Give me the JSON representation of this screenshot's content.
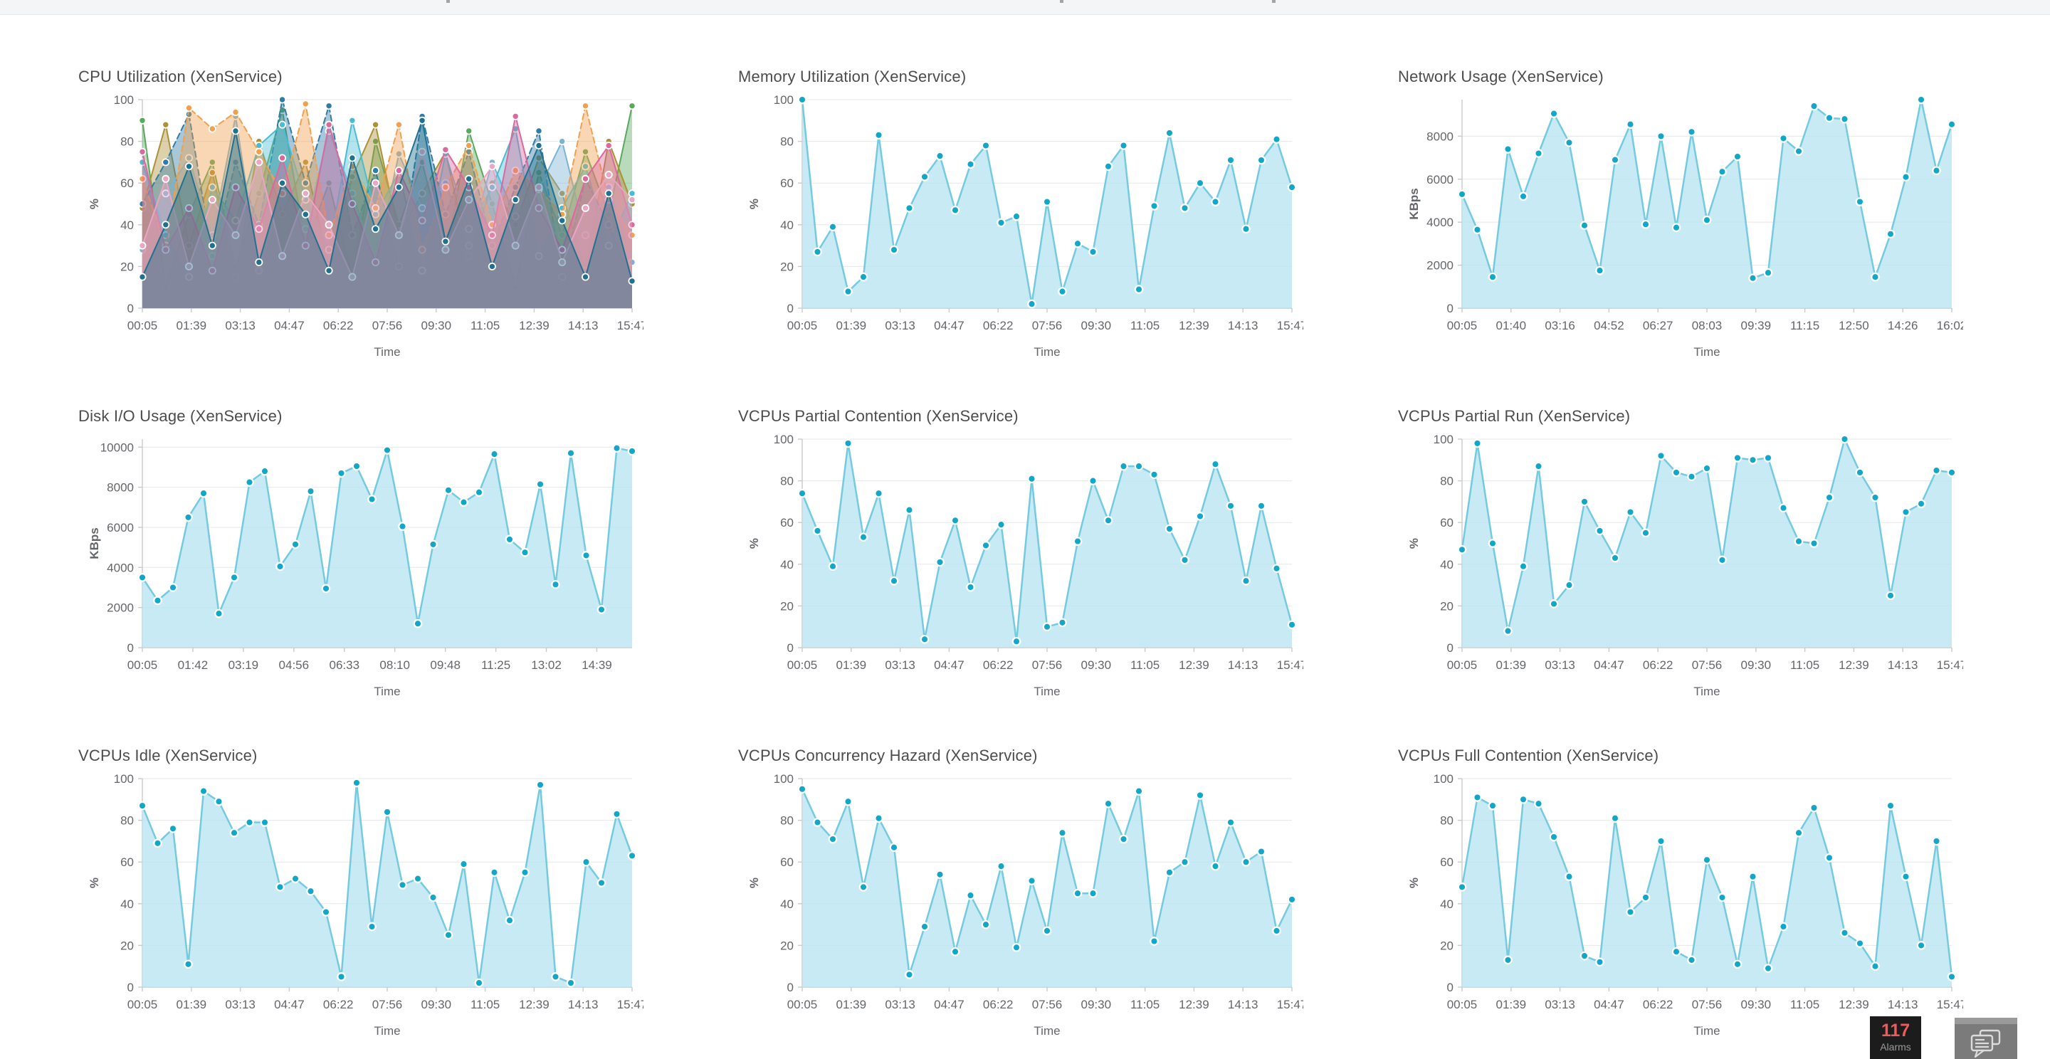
{
  "top_bar": {
    "background": "#f4f5f7"
  },
  "alarms_badge": {
    "count": "117",
    "label": "Alarms",
    "bg": "#1c1c1c",
    "count_color": "#ef5a5a",
    "label_color": "#9b9b9b"
  },
  "chat_button": {
    "icon": "chat-bubbles-icon",
    "bg": "#7b7b7b"
  },
  "chart_style": {
    "grid": "#e6e7e8",
    "axis": "#c8cacc",
    "text": "#64666a",
    "title": "#4c4c4e",
    "single": {
      "line": "#74cbe0",
      "fill": "#b9e5f2",
      "fill_opacity": 0.8,
      "marker": "#12a7c9",
      "marker_stroke": "#ffffff",
      "line_width": 2.5,
      "marker_r": 5.2
    },
    "multi": {
      "fill_opacity": 0.42,
      "line_width": 2,
      "marker_r": 4.6,
      "marker_stroke": "#ffffff"
    }
  },
  "chart_data": [
    {
      "type": "area",
      "title": "CPU Utilization (XenService)",
      "xlabel": "Time",
      "ylabel": "%",
      "ymax": 100,
      "yticks": [
        0,
        20,
        40,
        60,
        80,
        100
      ],
      "tick_end": 1.0,
      "xticks": [
        "00:05",
        "01:39",
        "03:13",
        "04:47",
        "06:22",
        "07:56",
        "09:30",
        "11:05",
        "12:39",
        "14:13",
        "15:47"
      ],
      "series": [
        {
          "color": "#59a85c",
          "values": [
            90,
            10,
            45,
            70,
            20,
            55,
            95,
            30,
            60,
            15,
            80,
            40,
            70,
            25,
            85,
            50,
            10,
            65,
            35,
            75,
            45,
            97
          ]
        },
        {
          "color": "#ab9137",
          "values": [
            48,
            88,
            30,
            65,
            15,
            80,
            45,
            70,
            20,
            63,
            88,
            35,
            55,
            75,
            25,
            60,
            40,
            72,
            55,
            18,
            80,
            50
          ]
        },
        {
          "color": "#2f7ca8",
          "dash": "8,5",
          "values": [
            50,
            70,
            93,
            25,
            70,
            40,
            100,
            60,
            97,
            35,
            66,
            20,
            92,
            45,
            75,
            30,
            58,
            85,
            15,
            62,
            40,
            13
          ]
        },
        {
          "color": "#7ab3d4",
          "values": [
            28,
            55,
            72,
            35,
            92,
            18,
            55,
            38,
            85,
            55,
            22,
            74,
            48,
            60,
            30,
            70,
            44,
            57,
            80,
            35,
            58,
            22
          ]
        },
        {
          "color": "#49bcd4",
          "values": [
            70,
            35,
            15,
            58,
            42,
            78,
            88,
            52,
            28,
            90,
            45,
            65,
            18,
            74,
            38,
            58,
            86,
            25,
            48,
            68,
            30,
            55
          ]
        },
        {
          "color": "#f0a04e",
          "dash": "8,5",
          "values": [
            62,
            30,
            96,
            86,
            94,
            75,
            55,
            98,
            35,
            68,
            48,
            88,
            28,
            58,
            78,
            40,
            66,
            57,
            45,
            97,
            52,
            35
          ]
        },
        {
          "color": "#d9699e",
          "values": [
            75,
            28,
            48,
            18,
            58,
            38,
            72,
            30,
            88,
            50,
            22,
            66,
            42,
            76,
            58,
            35,
            92,
            48,
            28,
            62,
            78,
            40
          ]
        },
        {
          "color": "#e8a7c3",
          "values": [
            30,
            62,
            20,
            52,
            35,
            70,
            25,
            55,
            40,
            15,
            60,
            35,
            75,
            28,
            52,
            68,
            30,
            58,
            22,
            48,
            64,
            52
          ]
        },
        {
          "color": "#20718f",
          "values": [
            15,
            40,
            68,
            30,
            85,
            22,
            60,
            45,
            18,
            72,
            38,
            58,
            90,
            32,
            62,
            20,
            52,
            78,
            42,
            15,
            55,
            13
          ]
        }
      ]
    },
    {
      "type": "area",
      "title": "Memory Utilization (XenService)",
      "xlabel": "Time",
      "ylabel": "%",
      "ymax": 100,
      "yticks": [
        0,
        20,
        40,
        60,
        80,
        100
      ],
      "tick_end": 1.0,
      "xticks": [
        "00:05",
        "01:39",
        "03:13",
        "04:47",
        "06:22",
        "07:56",
        "09:30",
        "11:05",
        "12:39",
        "14:13",
        "15:47"
      ],
      "values": [
        100,
        27,
        39,
        8,
        15,
        83,
        28,
        48,
        63,
        73,
        47,
        69,
        78,
        41,
        44,
        2,
        51,
        8,
        31,
        27,
        68,
        78,
        9,
        49,
        84,
        48,
        60,
        51,
        71,
        38,
        71,
        81,
        58
      ]
    },
    {
      "type": "area",
      "title": "Network Usage (XenService)",
      "xlabel": "Time",
      "ylabel": "KBps",
      "ymax": 9700,
      "yticks": [
        0,
        2000,
        4000,
        6000,
        8000
      ],
      "tick_end": 1.0,
      "xticks": [
        "00:05",
        "01:40",
        "03:16",
        "04:52",
        "06:27",
        "08:03",
        "09:39",
        "11:15",
        "12:50",
        "14:26",
        "16:02"
      ],
      "values": [
        5300,
        3650,
        1450,
        7400,
        5200,
        7200,
        9050,
        7700,
        3850,
        1750,
        6900,
        8550,
        3900,
        8000,
        3750,
        8200,
        4100,
        6350,
        7050,
        1400,
        1650,
        7900,
        7300,
        9400,
        8850,
        8800,
        4950,
        1450,
        3450,
        6100,
        9700,
        6400,
        8550
      ]
    },
    {
      "type": "area",
      "title": "Disk I/O Usage (XenService)",
      "xlabel": "Time",
      "ylabel": "KBps",
      "ymax": 10400,
      "yticks": [
        0,
        2000,
        4000,
        6000,
        8000,
        10000
      ],
      "tick_end": 0.928,
      "xticks": [
        "00:05",
        "01:42",
        "03:19",
        "04:56",
        "06:33",
        "08:10",
        "09:48",
        "11:25",
        "13:02",
        "14:39"
      ],
      "values": [
        3500,
        2350,
        3000,
        6500,
        7700,
        1700,
        3500,
        8250,
        8800,
        4050,
        5150,
        7800,
        2950,
        8700,
        9050,
        7400,
        9850,
        6050,
        1200,
        5150,
        7850,
        7250,
        7750,
        9650,
        5400,
        4750,
        8150,
        3150,
        9700,
        4600,
        1900,
        9950,
        9800
      ]
    },
    {
      "type": "area",
      "title": "VCPUs Partial Contention (XenService)",
      "xlabel": "Time",
      "ylabel": "%",
      "ymax": 100,
      "yticks": [
        0,
        20,
        40,
        60,
        80,
        100
      ],
      "tick_end": 1.0,
      "xticks": [
        "00:05",
        "01:39",
        "03:13",
        "04:47",
        "06:22",
        "07:56",
        "09:30",
        "11:05",
        "12:39",
        "14:13",
        "15:47"
      ],
      "values": [
        74,
        56,
        39,
        98,
        53,
        74,
        32,
        66,
        4,
        41,
        61,
        29,
        49,
        59,
        3,
        81,
        10,
        12,
        51,
        80,
        61,
        87,
        87,
        83,
        57,
        42,
        63,
        88,
        68,
        32,
        68,
        38,
        11
      ]
    },
    {
      "type": "area",
      "title": "VCPUs Partial Run (XenService)",
      "xlabel": "Time",
      "ylabel": "%",
      "ymax": 100,
      "yticks": [
        0,
        20,
        40,
        60,
        80,
        100
      ],
      "tick_end": 1.0,
      "xticks": [
        "00:05",
        "01:39",
        "03:13",
        "04:47",
        "06:22",
        "07:56",
        "09:30",
        "11:05",
        "12:39",
        "14:13",
        "15:47"
      ],
      "values": [
        47,
        98,
        50,
        8,
        39,
        87,
        21,
        30,
        70,
        56,
        43,
        65,
        55,
        92,
        84,
        82,
        86,
        42,
        91,
        90,
        91,
        67,
        51,
        50,
        72,
        100,
        84,
        72,
        25,
        65,
        69,
        85,
        84
      ]
    },
    {
      "type": "area",
      "title": "VCPUs Idle (XenService)",
      "xlabel": "Time",
      "ylabel": "%",
      "ymax": 100,
      "yticks": [
        0,
        20,
        40,
        60,
        80,
        100
      ],
      "tick_end": 1.0,
      "xticks": [
        "00:05",
        "01:39",
        "03:13",
        "04:47",
        "06:22",
        "07:56",
        "09:30",
        "11:05",
        "12:39",
        "14:13",
        "15:47"
      ],
      "values": [
        87,
        69,
        76,
        11,
        94,
        89,
        74,
        79,
        79,
        48,
        52,
        46,
        36,
        5,
        98,
        29,
        84,
        49,
        52,
        43,
        25,
        59,
        2,
        55,
        32,
        55,
        97,
        5,
        2,
        60,
        50,
        83,
        63
      ]
    },
    {
      "type": "area",
      "title": "VCPUs Concurrency Hazard (XenService)",
      "xlabel": "Time",
      "ylabel": "%",
      "ymax": 100,
      "yticks": [
        0,
        20,
        40,
        60,
        80,
        100
      ],
      "tick_end": 1.0,
      "xticks": [
        "00:05",
        "01:39",
        "03:13",
        "04:47",
        "06:22",
        "07:56",
        "09:30",
        "11:05",
        "12:39",
        "14:13",
        "15:47"
      ],
      "values": [
        95,
        79,
        71,
        89,
        48,
        81,
        67,
        6,
        29,
        54,
        17,
        44,
        30,
        58,
        19,
        51,
        27,
        74,
        45,
        45,
        88,
        71,
        94,
        22,
        55,
        60,
        92,
        58,
        79,
        60,
        65,
        27,
        42
      ]
    },
    {
      "type": "area",
      "title": "VCPUs Full Contention (XenService)",
      "xlabel": "Time",
      "ylabel": "%",
      "ymax": 100,
      "yticks": [
        0,
        20,
        40,
        60,
        80,
        100
      ],
      "tick_end": 1.0,
      "xticks": [
        "00:05",
        "01:39",
        "03:13",
        "04:47",
        "06:22",
        "07:56",
        "09:30",
        "11:05",
        "12:39",
        "14:13",
        "15:47"
      ],
      "values": [
        48,
        91,
        87,
        13,
        90,
        88,
        72,
        53,
        15,
        12,
        81,
        36,
        43,
        70,
        17,
        13,
        61,
        43,
        11,
        53,
        9,
        29,
        74,
        86,
        62,
        26,
        21,
        10,
        87,
        53,
        20,
        70,
        5
      ]
    }
  ]
}
